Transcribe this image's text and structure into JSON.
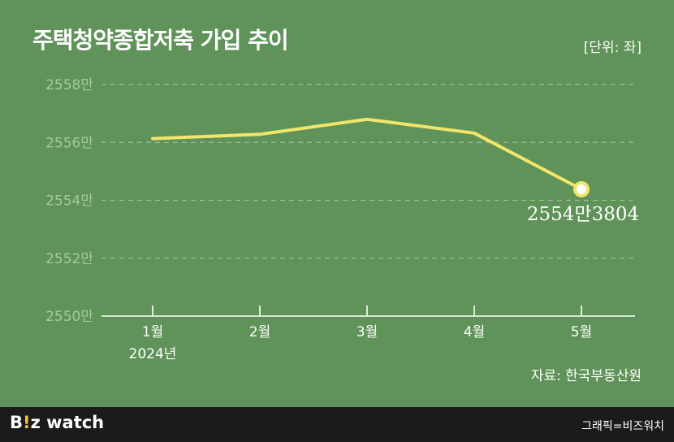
{
  "header": {
    "title": "주택청약종합저축 가입 추이",
    "unit": "[단위: 좌]"
  },
  "chart_data": {
    "type": "line",
    "title": "주택청약종합저축 가입 추이",
    "categories": [
      "1월",
      "2월",
      "3월",
      "4월",
      "5월"
    ],
    "x_sub_labels": [
      "2024년",
      "",
      "",
      "",
      ""
    ],
    "y_ticks": [
      "2550만",
      "2552만",
      "2554만",
      "2556만",
      "2558만"
    ],
    "ylim": [
      25500000,
      25580000
    ],
    "grid": true,
    "series": [
      {
        "values": [
          25561300,
          25562800,
          25568000,
          25563200,
          25543804
        ],
        "color": "#f2e56b"
      }
    ],
    "annotation": {
      "index": 4,
      "text": "2554만3804"
    }
  },
  "source": "자료: 한국부동산원",
  "footer": {
    "logo_b": "B",
    "logo_bang": "!",
    "logo_rest": "z watch",
    "credit": "그래픽=비즈워치"
  }
}
